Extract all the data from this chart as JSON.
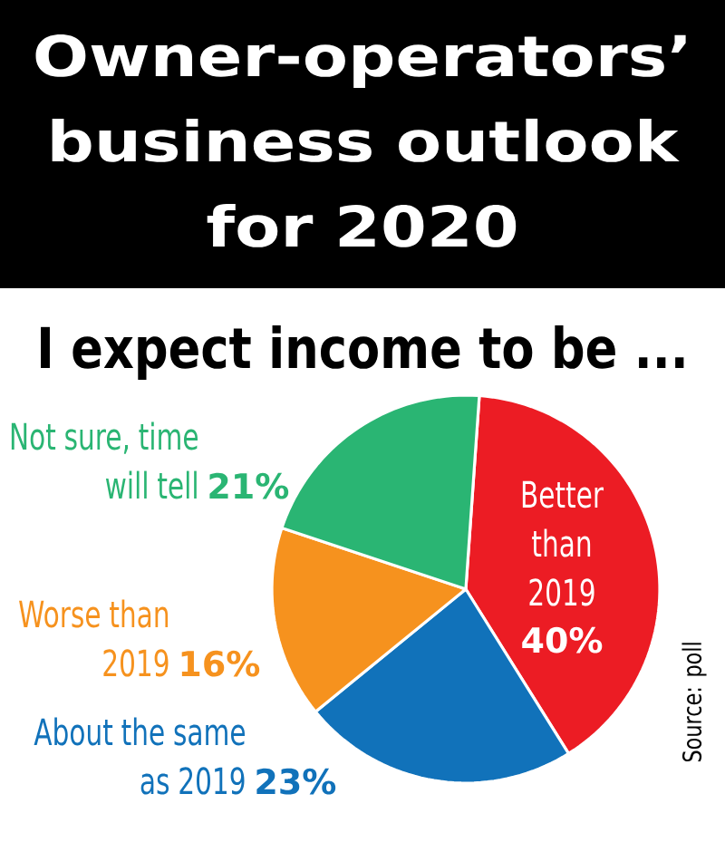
{
  "chart_data": {
    "type": "pie",
    "title": "Owner-operators’ business outlook for 2020",
    "subtitle": "I expect income to be ...",
    "categories": [
      "Better than 2019",
      "About the same as 2019",
      "Worse than 2019",
      "Not sure, time will tell"
    ],
    "values": [
      40,
      23,
      16,
      21
    ],
    "colors": [
      "#ec1c24",
      "#1172ba",
      "#f6921e",
      "#2ab573"
    ],
    "value_labels": [
      "40%",
      "23%",
      "16%",
      "21%"
    ],
    "annotations": [
      "Source: poll"
    ]
  }
}
